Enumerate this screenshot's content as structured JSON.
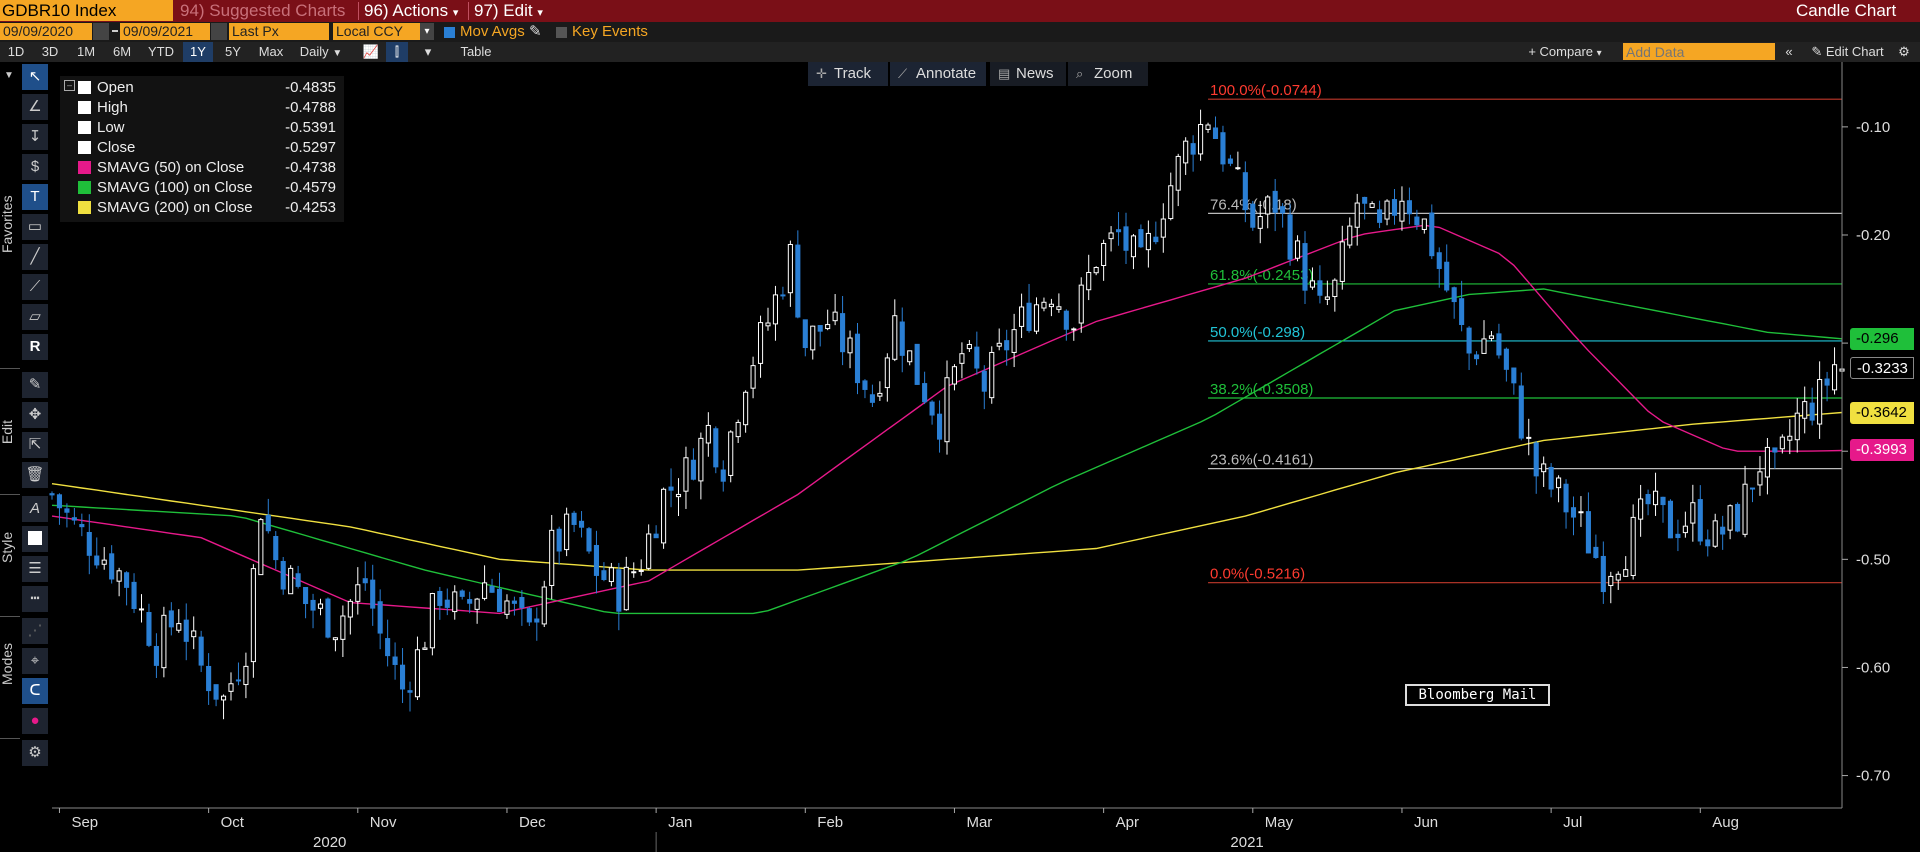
{
  "topbar": {
    "ticker": "GDBR10 Index",
    "suggested": "94) Suggested Charts",
    "actions": "96) Actions",
    "edit": "97) Edit",
    "title": "Candle Chart"
  },
  "controls": {
    "start_date": "09/09/2020",
    "end_date": "09/09/2021",
    "field": "Last Px",
    "currency": "Local CCY",
    "mov_avgs": "Mov Avgs",
    "key_events": "Key Events",
    "compare": "+ Compare",
    "add_data_placeholder": "Add Data",
    "edit_chart": "Edit Chart",
    "table": "Table",
    "periods": [
      "1D",
      "3D",
      "1M",
      "6M",
      "YTD",
      "1Y",
      "5Y",
      "Max"
    ],
    "selected_period": "1Y",
    "frequency": "Daily"
  },
  "chart_toolbar": {
    "track": "Track",
    "annotate": "Annotate",
    "news": "News",
    "zoom": "Zoom"
  },
  "left_toolbar": {
    "favorites": "Favorites",
    "edit": "Edit",
    "style": "Style",
    "modes": "Modes"
  },
  "legend": [
    {
      "label": "Open",
      "value": "-0.4835",
      "color": "#ffffff"
    },
    {
      "label": "High",
      "value": "-0.4788",
      "color": "#ffffff"
    },
    {
      "label": "Low",
      "value": "-0.5391",
      "color": "#ffffff"
    },
    {
      "label": "Close",
      "value": "-0.5297",
      "color": "#ffffff"
    },
    {
      "label": "SMAVG (50)  on Close",
      "value": "-0.4738",
      "color": "#e6198a"
    },
    {
      "label": "SMAVG (100)  on Close",
      "value": "-0.4579",
      "color": "#1fbf3a"
    },
    {
      "label": "SMAVG (200)  on Close",
      "value": "-0.4253",
      "color": "#f0e040"
    }
  ],
  "watermark": "Bloomberg Mail",
  "price_tags": [
    {
      "text": "-0.296",
      "value": -0.296,
      "bg": "#1fbf3a",
      "fg": "#000000"
    },
    {
      "text": "-0.3233",
      "value": -0.3233,
      "bg": "#000000",
      "fg": "#ffffff"
    },
    {
      "text": "-0.3642",
      "value": -0.3642,
      "bg": "#f0e040",
      "fg": "#000000"
    },
    {
      "text": "-0.3993",
      "value": -0.3993,
      "bg": "#e6198a",
      "fg": "#ffffff"
    }
  ],
  "colors": {
    "up_candle": "#ffffff",
    "down_candle": "#2a7fd4",
    "sma50": "#e6198a",
    "sma100": "#1fbf3a",
    "sma200": "#f0e040"
  },
  "chart_data": {
    "type": "candlestick",
    "title": "",
    "ylim": [
      -0.73,
      -0.04
    ],
    "y_ticks": [
      -0.1,
      -0.2,
      -0.3,
      -0.4,
      -0.5,
      -0.6,
      -0.7
    ],
    "y_tick_labels": [
      "-0.10",
      "-0.20",
      "-0.30",
      "-0.40",
      "-0.50",
      "-0.60",
      "-0.70"
    ],
    "x_months": [
      "Sep",
      "Oct",
      "Nov",
      "Dec",
      "Jan",
      "Feb",
      "Mar",
      "Apr",
      "May",
      "Jun",
      "Jul",
      "Aug"
    ],
    "x_years": [
      "2020",
      "2021"
    ],
    "close_path": [
      [
        0,
        -0.44
      ],
      [
        3,
        -0.47
      ],
      [
        6,
        -0.49
      ],
      [
        10,
        -0.52
      ],
      [
        14,
        -0.58
      ],
      [
        17,
        -0.55
      ],
      [
        20,
        -0.6
      ],
      [
        23,
        -0.63
      ],
      [
        26,
        -0.58
      ],
      [
        28,
        -0.45
      ],
      [
        30,
        -0.5
      ],
      [
        34,
        -0.54
      ],
      [
        38,
        -0.56
      ],
      [
        42,
        -0.52
      ],
      [
        44,
        -0.57
      ],
      [
        47,
        -0.62
      ],
      [
        49,
        -0.59
      ],
      [
        52,
        -0.53
      ],
      [
        55,
        -0.55
      ],
      [
        58,
        -0.52
      ],
      [
        61,
        -0.54
      ],
      [
        64,
        -0.57
      ],
      [
        67,
        -0.49
      ],
      [
        70,
        -0.47
      ],
      [
        73,
        -0.51
      ],
      [
        76,
        -0.53
      ],
      [
        79,
        -0.5
      ],
      [
        82,
        -0.44
      ],
      [
        85,
        -0.42
      ],
      [
        88,
        -0.38
      ],
      [
        90,
        -0.41
      ],
      [
        93,
        -0.33
      ],
      [
        96,
        -0.28
      ],
      [
        99,
        -0.22
      ],
      [
        101,
        -0.3
      ],
      [
        104,
        -0.28
      ],
      [
        107,
        -0.31
      ],
      [
        110,
        -0.35
      ],
      [
        113,
        -0.28
      ],
      [
        116,
        -0.33
      ],
      [
        119,
        -0.37
      ],
      [
        122,
        -0.31
      ],
      [
        125,
        -0.34
      ],
      [
        128,
        -0.3
      ],
      [
        131,
        -0.27
      ],
      [
        134,
        -0.25
      ],
      [
        137,
        -0.28
      ],
      [
        140,
        -0.22
      ],
      [
        143,
        -0.2
      ],
      [
        146,
        -0.23
      ],
      [
        149,
        -0.17
      ],
      [
        152,
        -0.12
      ],
      [
        155,
        -0.09
      ],
      [
        158,
        -0.14
      ],
      [
        161,
        -0.19
      ],
      [
        164,
        -0.17
      ],
      [
        167,
        -0.22
      ],
      [
        170,
        -0.27
      ],
      [
        172,
        -0.25
      ],
      [
        175,
        -0.17
      ],
      [
        178,
        -0.2
      ],
      [
        181,
        -0.16
      ],
      [
        184,
        -0.19
      ],
      [
        187,
        -0.25
      ],
      [
        190,
        -0.31
      ],
      [
        193,
        -0.29
      ],
      [
        196,
        -0.35
      ],
      [
        199,
        -0.42
      ],
      [
        202,
        -0.44
      ],
      [
        205,
        -0.47
      ],
      [
        208,
        -0.51
      ],
      [
        211,
        -0.49
      ],
      [
        214,
        -0.45
      ],
      [
        217,
        -0.47
      ],
      [
        220,
        -0.46
      ],
      [
        223,
        -0.48
      ],
      [
        226,
        -0.46
      ],
      [
        229,
        -0.41
      ],
      [
        231,
        -0.42
      ],
      [
        234,
        -0.37
      ],
      [
        237,
        -0.35
      ],
      [
        239,
        -0.32
      ],
      [
        240,
        -0.3233
      ]
    ],
    "sma50": [
      [
        0,
        -0.46
      ],
      [
        20,
        -0.48
      ],
      [
        40,
        -0.54
      ],
      [
        60,
        -0.55
      ],
      [
        80,
        -0.52
      ],
      [
        100,
        -0.44
      ],
      [
        120,
        -0.34
      ],
      [
        140,
        -0.28
      ],
      [
        160,
        -0.24
      ],
      [
        175,
        -0.2
      ],
      [
        185,
        -0.19
      ],
      [
        195,
        -0.22
      ],
      [
        205,
        -0.3
      ],
      [
        215,
        -0.37
      ],
      [
        225,
        -0.4
      ],
      [
        235,
        -0.4
      ],
      [
        240,
        -0.3993
      ]
    ],
    "sma100": [
      [
        0,
        -0.45
      ],
      [
        25,
        -0.46
      ],
      [
        50,
        -0.51
      ],
      [
        75,
        -0.55
      ],
      [
        95,
        -0.55
      ],
      [
        115,
        -0.5
      ],
      [
        135,
        -0.43
      ],
      [
        155,
        -0.37
      ],
      [
        170,
        -0.31
      ],
      [
        180,
        -0.27
      ],
      [
        190,
        -0.255
      ],
      [
        200,
        -0.25
      ],
      [
        215,
        -0.27
      ],
      [
        230,
        -0.29
      ],
      [
        240,
        -0.296
      ]
    ],
    "sma200": [
      [
        0,
        -0.43
      ],
      [
        20,
        -0.45
      ],
      [
        40,
        -0.47
      ],
      [
        60,
        -0.5
      ],
      [
        80,
        -0.51
      ],
      [
        100,
        -0.51
      ],
      [
        120,
        -0.5
      ],
      [
        140,
        -0.49
      ],
      [
        160,
        -0.46
      ],
      [
        180,
        -0.42
      ],
      [
        200,
        -0.39
      ],
      [
        220,
        -0.375
      ],
      [
        240,
        -0.3642
      ]
    ],
    "fib_levels": [
      {
        "label": "100.0%(-0.0744)",
        "value": -0.0744,
        "line": "#c0392b",
        "text": "#ff3b30"
      },
      {
        "label": "76.4%(-0.18)",
        "value": -0.18,
        "line": "#bbbbbb",
        "text": "#bbbbbb"
      },
      {
        "label": "61.8%(-0.2453)",
        "value": -0.2453,
        "line": "#1fbf3a",
        "text": "#1fbf3a"
      },
      {
        "label": "50.0%(-0.298)",
        "value": -0.298,
        "line": "#21c4d6",
        "text": "#21c4d6"
      },
      {
        "label": "38.2%(-0.3508)",
        "value": -0.3508,
        "line": "#1fbf3a",
        "text": "#1fbf3a"
      },
      {
        "label": "23.6%(-0.4161)",
        "value": -0.4161,
        "line": "#bbbbbb",
        "text": "#bbbbbb"
      },
      {
        "label": "0.0%(-0.5216)",
        "value": -0.5216,
        "line": "#c0392b",
        "text": "#ff3b30"
      }
    ]
  }
}
